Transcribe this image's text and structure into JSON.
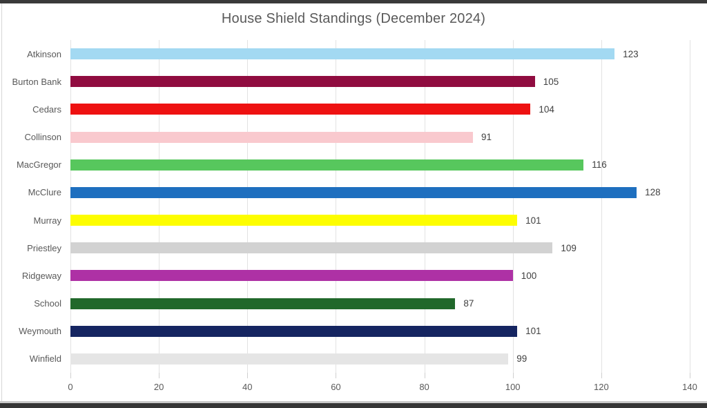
{
  "window": {
    "top_edge_color": "#3a3a3a",
    "bottom_edge_color": "#353535"
  },
  "chart_data": {
    "type": "bar",
    "orientation": "horizontal",
    "title": "House Shield Standings (December 2024)",
    "categories": [
      "Atkinson",
      "Burton Bank",
      "Cedars",
      "Collinson",
      "MacGregor",
      "McClure",
      "Murray",
      "Priestley",
      "Ridgeway",
      "School",
      "Weymouth",
      "Winfield"
    ],
    "values": [
      123,
      105,
      104,
      91,
      116,
      128,
      101,
      109,
      100,
      87,
      101,
      99
    ],
    "bar_colors": [
      "#A3D9F2",
      "#900C40",
      "#EE1111",
      "#F9C9CE",
      "#57C75D",
      "#1E6FBF",
      "#FDFD00",
      "#D2D2D2",
      "#AE31A5",
      "#21682B",
      "#152561",
      "#E5E5E5"
    ],
    "xlabel": "",
    "ylabel": "",
    "xlim": [
      0,
      140
    ],
    "x_ticks": [
      0,
      20,
      40,
      60,
      80,
      100,
      120,
      140
    ],
    "grid": "vertical",
    "grid_color": "#e2e2e2",
    "value_labels": true,
    "legend": "none",
    "title_color": "#595959",
    "label_color": "#595959",
    "value_label_color": "#404040"
  }
}
